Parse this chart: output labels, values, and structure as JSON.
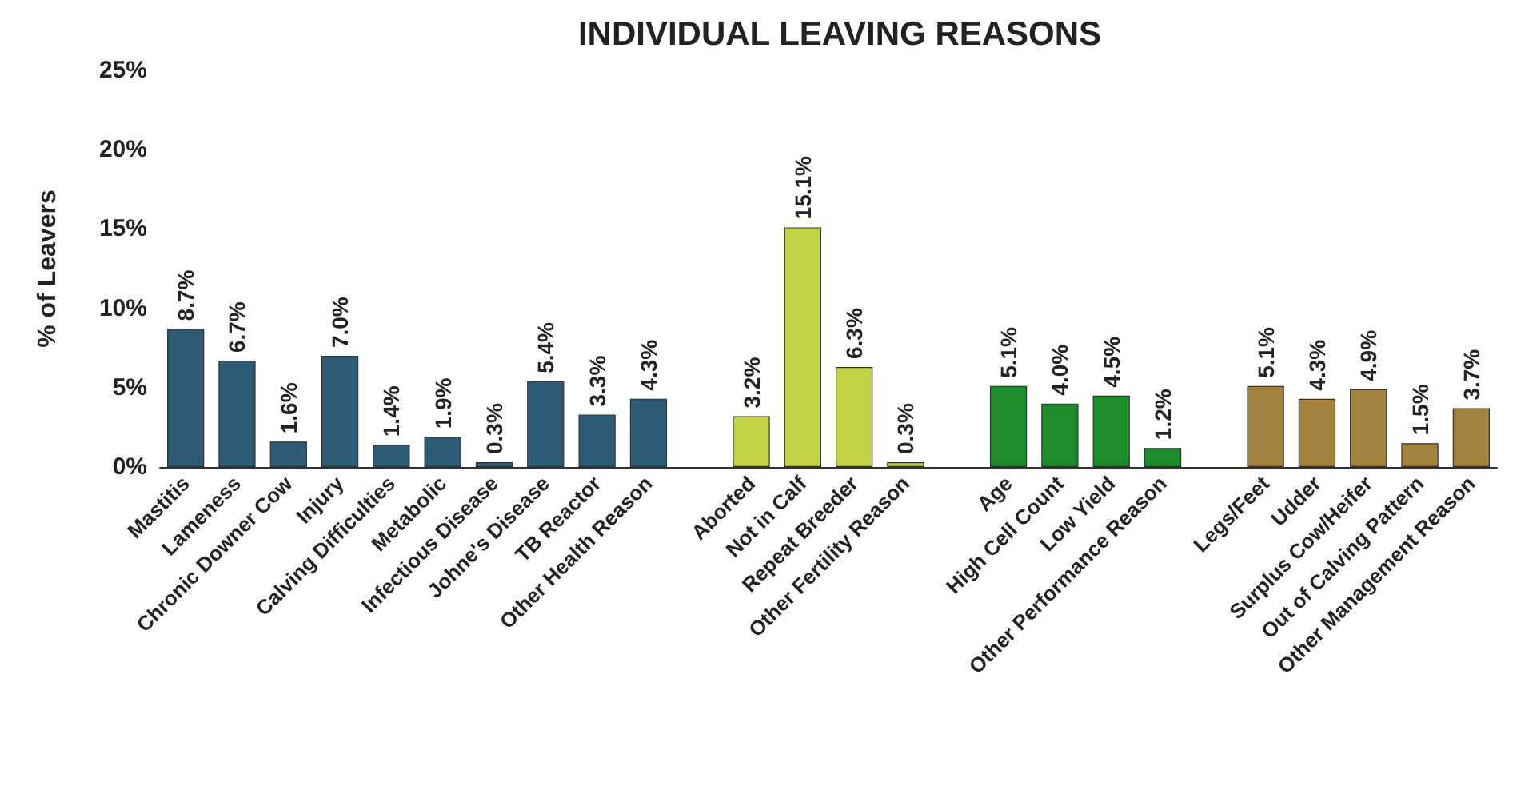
{
  "chart_data": {
    "type": "bar",
    "title": "INDIVIDUAL LEAVING REASONS",
    "ylabel": "% of Leavers",
    "categories": [
      "Mastitis",
      "Lameness",
      "Chronic Downer Cow",
      "Injury",
      "Calving Difficulties",
      "Metabolic",
      "Infectious Disease",
      "Johne's Disease",
      "TB Reactor",
      "Other Health Reason",
      null,
      "Aborted",
      "Not in Calf",
      "Repeat Breeder",
      "Other Fertility Reason",
      null,
      "Age",
      "High Cell Count",
      "Low Yield",
      "Other Performance Reason",
      null,
      "Legs/Feet",
      "Udder",
      "Surplus Cow/Heifer",
      "Out of Calving Pattern",
      "Other Management Reason"
    ],
    "values": [
      8.7,
      6.7,
      1.6,
      7.0,
      1.4,
      1.9,
      0.3,
      5.4,
      3.3,
      4.3,
      null,
      3.2,
      15.1,
      6.3,
      0.3,
      null,
      5.1,
      4.0,
      4.5,
      1.2,
      null,
      5.1,
      4.3,
      4.9,
      1.5,
      3.7
    ],
    "value_labels": [
      "8.7%",
      "6.7%",
      "1.6%",
      "7.0%",
      "1.4%",
      "1.9%",
      "0.3%",
      "5.4%",
      "3.3%",
      "4.3%",
      null,
      "3.2%",
      "15.1%",
      "6.3%",
      "0.3%",
      null,
      "5.1%",
      "4.0%",
      "4.5%",
      "1.2%",
      null,
      "5.1%",
      "4.3%",
      "4.9%",
      "1.5%",
      "3.7%"
    ],
    "colors": [
      "#2e5b76",
      "#2e5b76",
      "#2e5b76",
      "#2e5b76",
      "#2e5b76",
      "#2e5b76",
      "#2e5b76",
      "#2e5b76",
      "#2e5b76",
      "#2e5b76",
      null,
      "#c3d246",
      "#c3d246",
      "#c3d246",
      "#c3d246",
      null,
      "#1e8b2c",
      "#1e8b2c",
      "#1e8b2c",
      "#1e8b2c",
      null,
      "#a3823f",
      "#a3823f",
      "#a3823f",
      "#a3823f",
      "#a3823f"
    ],
    "ylim": [
      0,
      25
    ],
    "yticks": [
      {
        "value": 0,
        "label": "0%"
      },
      {
        "value": 5,
        "label": "5%"
      },
      {
        "value": 10,
        "label": "10%"
      },
      {
        "value": 15,
        "label": "15%"
      },
      {
        "value": 20,
        "label": "20%"
      },
      {
        "value": 25,
        "label": "25%"
      }
    ],
    "grid": false
  }
}
